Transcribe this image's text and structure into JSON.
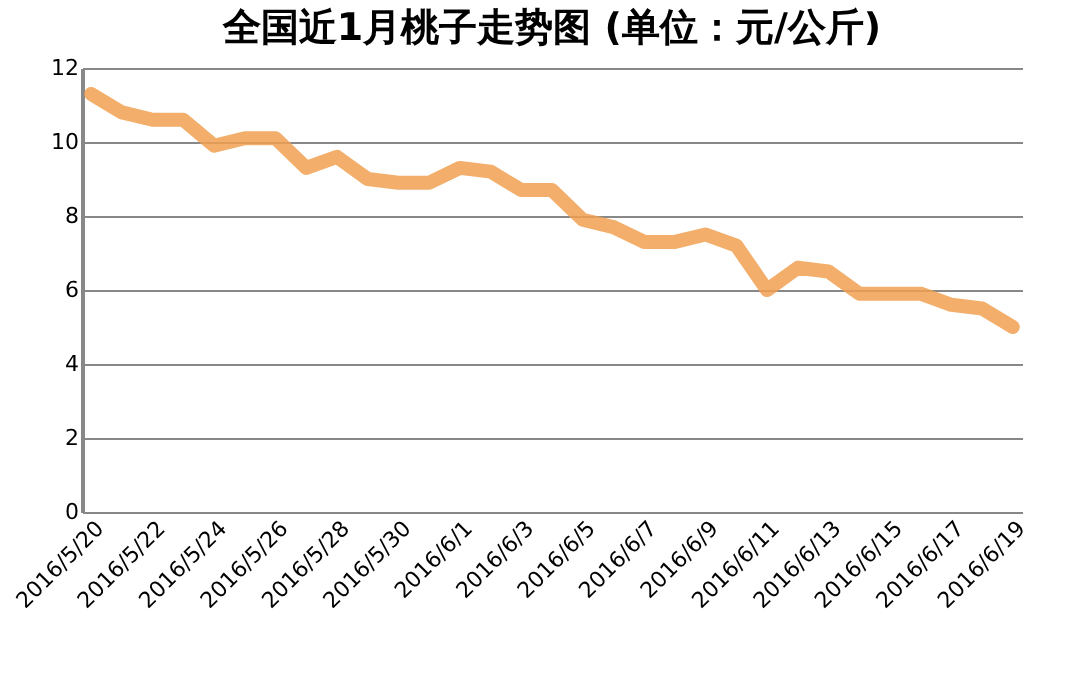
{
  "chart_data": {
    "type": "line",
    "title": "全国近1月桃子走势图 (单位：元/公斤)",
    "categories": [
      "2016/5/20",
      null,
      "2016/5/22",
      null,
      "2016/5/24",
      null,
      "2016/5/26",
      null,
      "2016/5/28",
      null,
      "2016/5/30",
      null,
      "2016/6/1",
      null,
      "2016/6/3",
      null,
      "2016/6/5",
      null,
      "2016/6/7",
      null,
      "2016/6/9",
      null,
      "2016/6/11",
      null,
      "2016/6/13",
      null,
      "2016/6/15",
      null,
      "2016/6/17",
      null,
      "2016/6/19"
    ],
    "series": [
      {
        "color": "#f0a050",
        "values": [
          11.3,
          10.8,
          10.6,
          10.6,
          9.9,
          10.1,
          10.1,
          9.3,
          9.6,
          9.0,
          8.9,
          8.9,
          9.3,
          9.2,
          8.7,
          8.7,
          7.9,
          7.7,
          7.3,
          7.3,
          7.5,
          7.2,
          6.0,
          6.6,
          6.5,
          5.9,
          5.9,
          5.9,
          5.6,
          5.5,
          5.0
        ]
      }
    ],
    "ylim": [
      0,
      12
    ],
    "yticks": [
      0,
      2,
      4,
      6,
      8,
      10,
      12
    ],
    "grid": "y",
    "marker": "none",
    "line_style": "solid"
  }
}
